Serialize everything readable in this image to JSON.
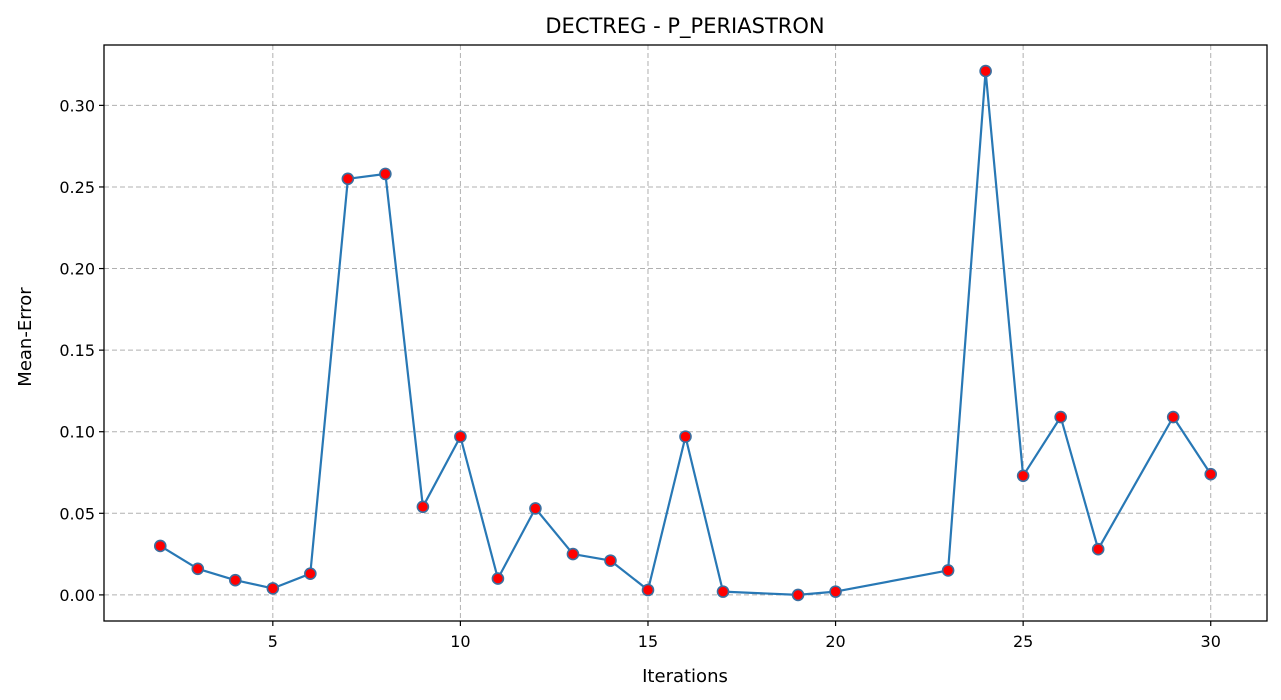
{
  "chart_data": {
    "type": "line",
    "title": "DECTREG - P_PERIASTRON",
    "xlabel": "Iterations",
    "ylabel": "Mean-Error",
    "xlim": [
      0.5,
      31.5
    ],
    "ylim": [
      -0.016,
      0.337
    ],
    "x_ticks": [
      5,
      10,
      15,
      20,
      25,
      30
    ],
    "x_tick_labels": [
      "5",
      "10",
      "15",
      "20",
      "25",
      "30"
    ],
    "y_ticks": [
      0.0,
      0.05,
      0.1,
      0.15,
      0.2,
      0.25,
      0.3
    ],
    "y_tick_labels": [
      "0.00",
      "0.05",
      "0.10",
      "0.15",
      "0.20",
      "0.25",
      "0.30"
    ],
    "grid": true,
    "line_color": "#2878b5",
    "marker_color": "#ff0000",
    "marker_edge_color": "#3a6fa0",
    "series": [
      {
        "x": [
          2,
          3,
          4,
          5,
          6,
          7,
          8,
          9,
          10,
          11,
          12,
          13,
          14,
          15,
          16,
          17,
          19,
          20,
          23,
          24,
          25,
          26,
          27,
          29,
          30
        ],
        "y": [
          0.03,
          0.016,
          0.009,
          0.004,
          0.013,
          0.255,
          0.258,
          0.054,
          0.097,
          0.01,
          0.053,
          0.025,
          0.021,
          0.003,
          0.097,
          0.002,
          0.0,
          0.002,
          0.015,
          0.321,
          0.073,
          0.109,
          0.028,
          0.109,
          0.074
        ]
      }
    ]
  }
}
